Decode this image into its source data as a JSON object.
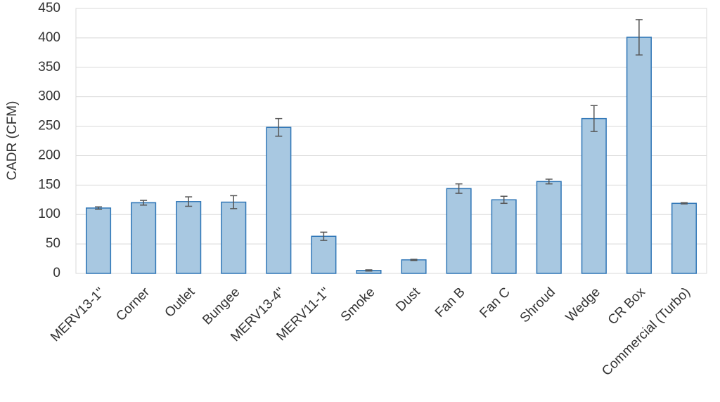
{
  "chart_data": {
    "type": "bar",
    "y_label": "CADR (CFM)",
    "categories": [
      "MERV13-1\"",
      "Corner",
      "Outlet",
      "Bungee",
      "MERV13-4\"",
      "MERV11-1\"",
      "Smoke",
      "Dust",
      "Fan B",
      "Fan C",
      "Shroud",
      "Wedge",
      "CR Box",
      "Commercial (Turbo)"
    ],
    "values": [
      111,
      120,
      122,
      121,
      248,
      63,
      5,
      23,
      144,
      125,
      156,
      263,
      401,
      119
    ],
    "errors": [
      2,
      4,
      8,
      11,
      15,
      7,
      1,
      1,
      8,
      6,
      4,
      22,
      30,
      1
    ],
    "color": "#a8c8e1",
    "edge_color": "#2e75b6",
    "ylim": [
      0,
      450
    ],
    "yticks": [
      0,
      50,
      100,
      150,
      200,
      250,
      300,
      350,
      400,
      450
    ],
    "grid": true
  }
}
